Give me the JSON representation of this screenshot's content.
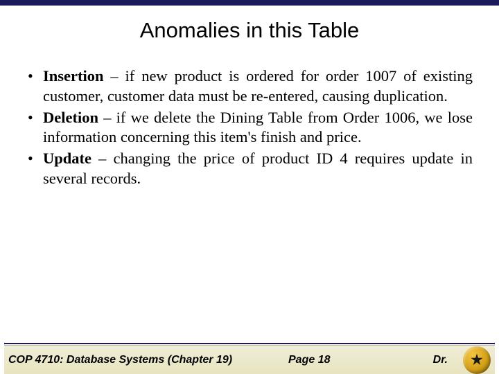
{
  "title": "Anomalies in this Table",
  "bullets": [
    {
      "term": "Insertion",
      "rest": " – if new product is ordered for order 1007 of existing customer, customer data must be re-entered, causing duplication."
    },
    {
      "term": "Deletion",
      "rest": " – if we delete the Dining Table from Order 1006, we lose information concerning this item's finish and price."
    },
    {
      "term": "Update",
      "rest": " – changing the price of product ID 4 requires update in several records."
    }
  ],
  "footer": {
    "left": "COP 4710: Database Systems  (Chapter 19)",
    "center": "Page 18",
    "right": "Dr."
  },
  "colors": {
    "accent": "#1a1a5c",
    "footer_bg_top": "#efedd8",
    "footer_bg_bottom": "#e8e4c0",
    "logo_gold": "#d4a017"
  }
}
